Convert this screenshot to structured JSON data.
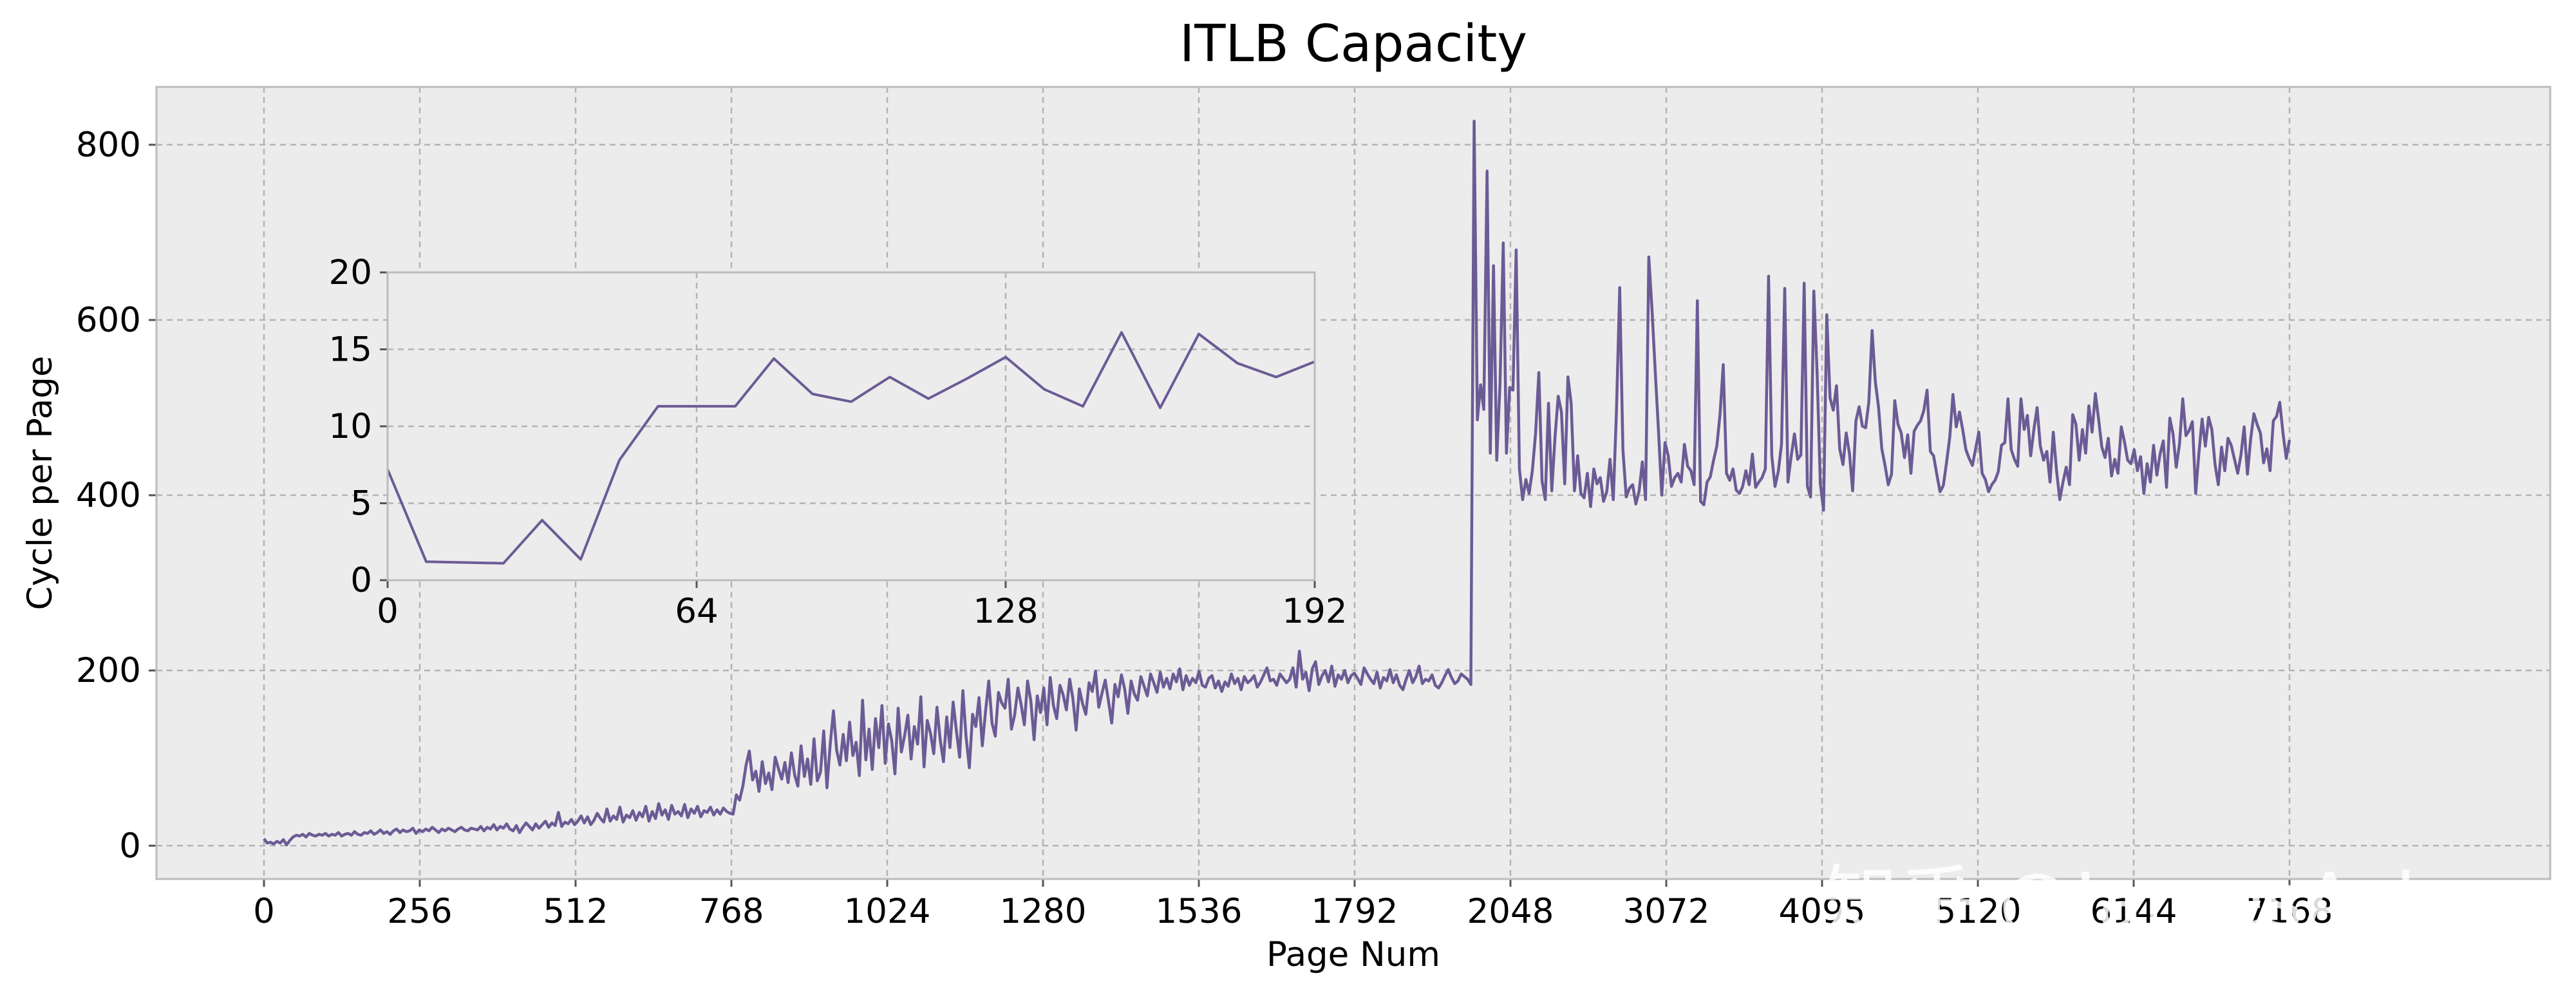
{
  "colors": {
    "figure_bg": "#ffffff",
    "axes_bg": "#ececec",
    "grid": "#b3b3b3",
    "spine": "#bcbcbc",
    "line": "#6b5b95"
  },
  "watermark": "知乎 @JamesAslan",
  "chart_data": [
    {
      "type": "line",
      "title": "ITLB Capacity",
      "xlabel": "Page Num",
      "ylabel": "Cycle per Page",
      "x_tick_labels": [
        "0",
        "256",
        "512",
        "768",
        "1024",
        "1280",
        "1536",
        "1792",
        "2048",
        "3072",
        "4095",
        "5120",
        "6144",
        "7168"
      ],
      "y_ticks": [
        0,
        200,
        400,
        600,
        800
      ],
      "ylim": [
        -38,
        866
      ],
      "grid": true,
      "series": [
        {
          "values": [
            8,
            3,
            4,
            2,
            5,
            3,
            7,
            1,
            6,
            10,
            12,
            11,
            13,
            10,
            14,
            12,
            11,
            13,
            12,
            14,
            11,
            13,
            12,
            15,
            11,
            13,
            14,
            12,
            16,
            13,
            12,
            15,
            14,
            17,
            13,
            15,
            18,
            14,
            16,
            13,
            17,
            19,
            15,
            18,
            16,
            17,
            20,
            14,
            18,
            16,
            19,
            17,
            21,
            18,
            15,
            19,
            17,
            20,
            18,
            16,
            19,
            21,
            18,
            17,
            20,
            19,
            18,
            22,
            17,
            21,
            19,
            24,
            18,
            22,
            20,
            25,
            19,
            17,
            23,
            15,
            21,
            26,
            22,
            18,
            25,
            20,
            24,
            28,
            21,
            26,
            23,
            38,
            22,
            27,
            25,
            30,
            24,
            28,
            34,
            26,
            33,
            24,
            29,
            37,
            31,
            27,
            42,
            28,
            34,
            30,
            44,
            27,
            35,
            32,
            40,
            29,
            38,
            33,
            45,
            28,
            39,
            31,
            48,
            35,
            41,
            30,
            46,
            36,
            39,
            34,
            47,
            32,
            42,
            37,
            45,
            33,
            40,
            38,
            44,
            35,
            41,
            36,
            43,
            39,
            37,
            36,
            58,
            52,
            68,
            92,
            108,
            75,
            85,
            62,
            96,
            71,
            83,
            64,
            101,
            88,
            76,
            95,
            72,
            106,
            81,
            68,
            114,
            79,
            99,
            70,
            122,
            74,
            84,
            131,
            66,
            116,
            154,
            109,
            92,
            127,
            97,
            141,
            103,
            118,
            80,
            166,
            98,
            133,
            87,
            145,
            112,
            160,
            94,
            139,
            120,
            82,
            157,
            107,
            126,
            149,
            99,
            136,
            116,
            170,
            90,
            143,
            128,
            105,
            158,
            121,
            96,
            147,
            112,
            164,
            131,
            101,
            177,
            124,
            89,
            150,
            136,
            169,
            114,
            153,
            188,
            140,
            125,
            175,
            163,
            157,
            190,
            133,
            149,
            180,
            161,
            138,
            188,
            165,
            121,
            171,
            152,
            180,
            138,
            192,
            160,
            145,
            183,
            172,
            155,
            190,
            168,
            132,
            179,
            162,
            150,
            186,
            176,
            199,
            158,
            174,
            189,
            165,
            140,
            184,
            170,
            195,
            179,
            151,
            188,
            173,
            166,
            193,
            182,
            171,
            196,
            186,
            175,
            198,
            181,
            191,
            179,
            196,
            187,
            202,
            178,
            194,
            183,
            191,
            186,
            199,
            183,
            181,
            191,
            194,
            180,
            188,
            176,
            187,
            182,
            196,
            185,
            191,
            178,
            193,
            186,
            189,
            194,
            181,
            187,
            195,
            203,
            188,
            190,
            183,
            196,
            191,
            186,
            190,
            203,
            181,
            222,
            190,
            198,
            177,
            202,
            210,
            184,
            194,
            200,
            187,
            205,
            182,
            195,
            190,
            200,
            186,
            194,
            197,
            191,
            184,
            203,
            196,
            190,
            185,
            198,
            180,
            192,
            188,
            201,
            186,
            195,
            183,
            178,
            190,
            200,
            186,
            193,
            205,
            185,
            190,
            188,
            195,
            183,
            180,
            186,
            194,
            201,
            192,
            185,
            188,
            196,
            193,
            190,
            184,
            827,
            486,
            526,
            498,
            770,
            448,
            662,
            440,
            527,
            688,
            448,
            523,
            520,
            680,
            430,
            395,
            418,
            402,
            428,
            470,
            540,
            416,
            395,
            505,
            405,
            466,
            513,
            495,
            413,
            535,
            505,
            405,
            445,
            402,
            397,
            425,
            387,
            430,
            413,
            420,
            393,
            404,
            441,
            395,
            497,
            637,
            452,
            398,
            408,
            412,
            390,
            405,
            438,
            395,
            672,
            610,
            540,
            473,
            400,
            460,
            445,
            410,
            420,
            425,
            415,
            458,
            433,
            428,
            412,
            622,
            393,
            389,
            415,
            421,
            440,
            456,
            492,
            549,
            425,
            417,
            430,
            406,
            402,
            410,
            428,
            412,
            447,
            409,
            415,
            420,
            430,
            650,
            445,
            410,
            427,
            458,
            636,
            415,
            445,
            470,
            441,
            446,
            642,
            410,
            398,
            633,
            540,
            413,
            383,
            606,
            511,
            497,
            525,
            453,
            435,
            471,
            448,
            405,
            485,
            501,
            479,
            477,
            507,
            588,
            530,
            500,
            453,
            434,
            412,
            424,
            508,
            481,
            471,
            443,
            469,
            425,
            473,
            480,
            485,
            497,
            520,
            450,
            445,
            424,
            404,
            411,
            437,
            466,
            515,
            478,
            495,
            475,
            452,
            442,
            434,
            453,
            472,
            425,
            418,
            404,
            412,
            417,
            427,
            457,
            460,
            510,
            452,
            441,
            433,
            510,
            475,
            491,
            445,
            475,
            500,
            456,
            440,
            450,
            415,
            472,
            428,
            395,
            415,
            432,
            412,
            492,
            481,
            440,
            475,
            448,
            502,
            472,
            516,
            487,
            455,
            443,
            465,
            422,
            441,
            425,
            478,
            461,
            440,
            436,
            452,
            428,
            444,
            402,
            436,
            415,
            457,
            423,
            447,
            462,
            409,
            488,
            470,
            432,
            458,
            510,
            468,
            474,
            484,
            402,
            448,
            487,
            456,
            489,
            475,
            435,
            412,
            455,
            428,
            465,
            457,
            441,
            425,
            446,
            478,
            424,
            464,
            493,
            481,
            471,
            437,
            453,
            428,
            485,
            490,
            506,
            471,
            442,
            463
          ]
        }
      ]
    },
    {
      "type": "line",
      "x": [
        0,
        8,
        16,
        24,
        32,
        40,
        48,
        56,
        64,
        72,
        80,
        88,
        96,
        104,
        112,
        120,
        128,
        136,
        144,
        152,
        160,
        168,
        176,
        184,
        192
      ],
      "x_ticks": [
        0,
        64,
        128,
        192
      ],
      "xlim": [
        0,
        192
      ],
      "y_ticks": [
        0,
        5,
        10,
        15,
        20
      ],
      "ylim": [
        0,
        20
      ],
      "grid": true,
      "series": [
        {
          "values": [
            7.2,
            1.2,
            1.15,
            1.1,
            3.9,
            1.35,
            7.8,
            11.3,
            11.3,
            11.3,
            14.4,
            12.1,
            11.6,
            13.2,
            11.8,
            13.1,
            14.5,
            12.4,
            11.3,
            16.1,
            11.2,
            16.0,
            14.1,
            13.2,
            14.2
          ]
        }
      ]
    }
  ]
}
